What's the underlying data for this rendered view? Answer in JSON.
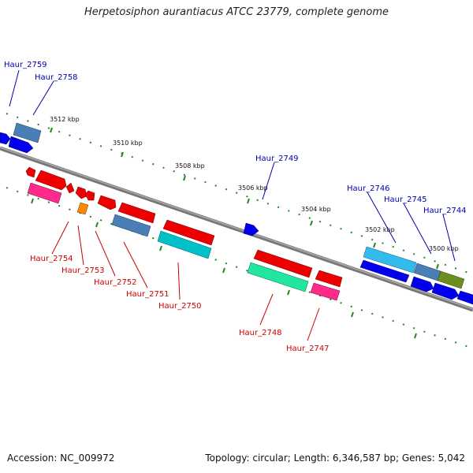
{
  "title": "Herpetosiphon aurantiacus ATCC 23779, complete genome",
  "footer": {
    "accession": "Accession: NC_009972",
    "summary": "Topology: circular; Length: 6,346,587 bp; Genes: 5,042"
  },
  "ruler_labels": [
    "3512 kbp",
    "3510 kbp",
    "3508 kbp",
    "3506 kbp",
    "3504 kbp",
    "3502 kbp",
    "3500 kbp"
  ],
  "top_labels": [
    "Haur_2759",
    "Haur_2758",
    "Haur_2749",
    "Haur_2746",
    "Haur_2745",
    "Haur_2744"
  ],
  "bottom_labels": [
    "Haur_2754",
    "Haur_2753",
    "Haur_2752",
    "Haur_2751",
    "Haur_2750",
    "Haur_2748",
    "Haur_2747"
  ],
  "colors": {
    "top_label": "#0000aa",
    "bottom_label": "#cc0000",
    "backbone": "#777777",
    "tick": "#228822",
    "blue": "#0000ee",
    "steelblue": "#4a7fb5",
    "red": "#ee0000",
    "pink": "#ff2a8a",
    "orange": "#ff8800",
    "teal": "#00c0c8",
    "mint": "#22e6a0",
    "cyan": "#33bbee",
    "olive": "#6a8f1e"
  }
}
